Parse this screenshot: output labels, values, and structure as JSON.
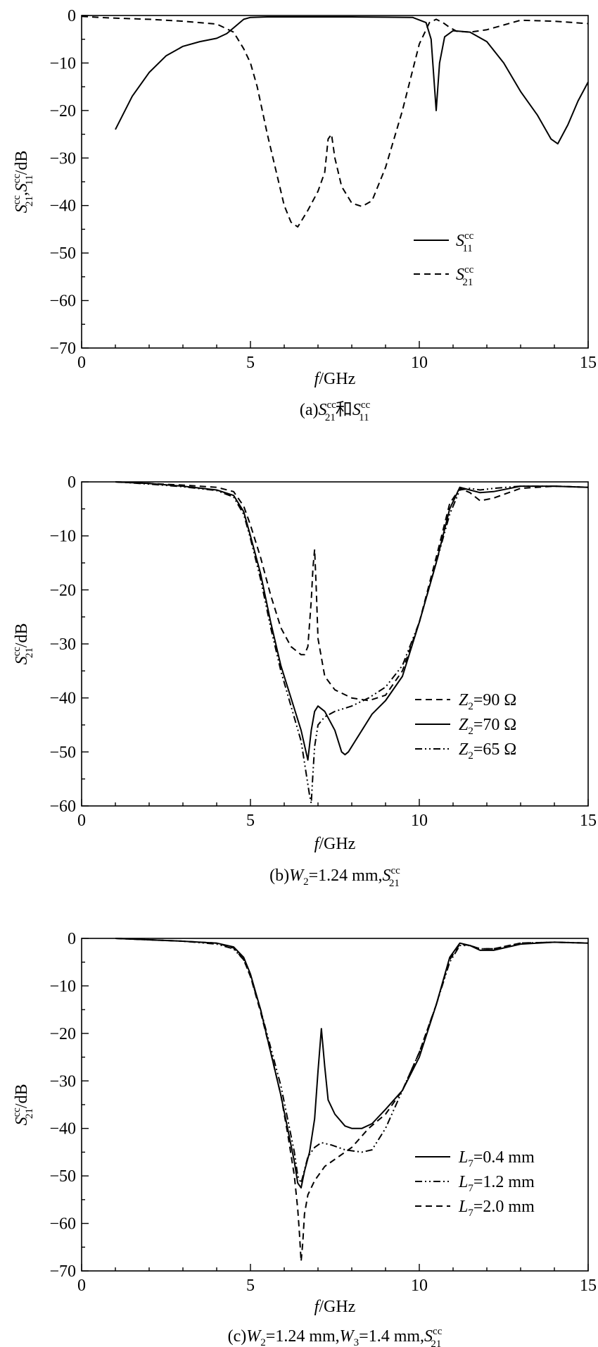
{
  "chart_data": [
    {
      "type": "line",
      "panel": "a",
      "caption": "(a)S21cc和S11cc",
      "xlabel": "f/GHz",
      "ylabel": "S21cc,S11cc/dB",
      "xlim": [
        0,
        15
      ],
      "ylim": [
        -70,
        0
      ],
      "xticks": [
        0,
        5,
        10,
        15
      ],
      "yticks": [
        0,
        -10,
        -20,
        -30,
        -40,
        -50,
        -60,
        -70
      ],
      "grid": false,
      "legend_position": "lower-right",
      "series": [
        {
          "name": "S11cc",
          "style": "solid",
          "x": [
            1.0,
            1.5,
            2.0,
            2.5,
            3.0,
            3.5,
            4.0,
            4.3,
            4.6,
            4.8,
            5.0,
            5.5,
            6.0,
            7.0,
            8.0,
            9.0,
            9.8,
            10.2,
            10.35,
            10.5,
            10.6,
            10.75,
            11.0,
            11.5,
            12.0,
            12.5,
            13.0,
            13.5,
            13.9,
            14.1,
            14.4,
            14.7,
            15.0
          ],
          "y": [
            -24,
            -17,
            -12,
            -8.5,
            -6.5,
            -5.5,
            -4.8,
            -3.8,
            -2.0,
            -0.8,
            -0.4,
            -0.3,
            -0.3,
            -0.3,
            -0.3,
            -0.35,
            -0.4,
            -1.5,
            -5,
            -20,
            -10,
            -4.5,
            -3.2,
            -3.5,
            -5.5,
            -10,
            -16,
            -21,
            -26,
            -27,
            -23,
            -18,
            -14
          ]
        },
        {
          "name": "S21cc",
          "style": "dashed",
          "x": [
            0.0,
            0.8,
            2.0,
            2.5,
            3.0,
            3.5,
            4.0,
            4.5,
            4.8,
            5.0,
            5.2,
            5.5,
            6.0,
            6.2,
            6.4,
            6.7,
            7.0,
            7.2,
            7.3,
            7.4,
            7.5,
            7.7,
            8.0,
            8.3,
            8.6,
            9.0,
            9.5,
            10.0,
            10.3,
            10.5,
            10.7,
            10.9,
            11.1,
            11.5,
            12.0,
            12.5,
            13.0,
            14.0,
            15.0
          ],
          "y": [
            -0.2,
            -0.5,
            -0.8,
            -1.0,
            -1.2,
            -1.5,
            -1.8,
            -3.5,
            -7,
            -10,
            -15,
            -25,
            -40,
            -43.5,
            -44.5,
            -41,
            -37,
            -33,
            -26,
            -25,
            -30,
            -36,
            -39.5,
            -40.2,
            -39,
            -32,
            -20,
            -6,
            -1.5,
            -0.8,
            -1.5,
            -2.5,
            -3.3,
            -3.5,
            -3.0,
            -2.0,
            -1.0,
            -1.2,
            -1.7
          ]
        }
      ]
    },
    {
      "type": "line",
      "panel": "b",
      "caption": "(b)W2=1.24 mm,S21cc",
      "xlabel": "f/GHz",
      "ylabel": "S21cc/dB",
      "xlim": [
        0,
        15
      ],
      "ylim": [
        -60,
        0
      ],
      "xticks": [
        0,
        5,
        10,
        15
      ],
      "yticks": [
        0,
        -10,
        -20,
        -30,
        -40,
        -50,
        -60
      ],
      "grid": false,
      "legend_position": "lower-right",
      "series": [
        {
          "name": "Z2=90 Ω",
          "style": "dashed",
          "x": [
            1.0,
            2.0,
            3.0,
            4.0,
            4.5,
            4.8,
            5.0,
            5.3,
            5.6,
            5.9,
            6.2,
            6.5,
            6.6,
            6.7,
            6.8,
            6.85,
            6.9,
            6.95,
            7.0,
            7.2,
            7.5,
            8.0,
            8.5,
            9.0,
            9.5,
            10.0,
            10.5,
            10.9,
            11.2,
            11.5,
            11.8,
            12.2,
            13.0,
            14.0,
            15.0
          ],
          "y": [
            0,
            -0.3,
            -0.6,
            -1.0,
            -1.8,
            -4.5,
            -8,
            -14,
            -21,
            -27,
            -30.5,
            -32.0,
            -32.0,
            -30.5,
            -22,
            -16,
            -12.5,
            -20,
            -29,
            -36,
            -38.5,
            -40,
            -40.5,
            -39.5,
            -35,
            -26,
            -14,
            -4,
            -1.2,
            -2,
            -3.5,
            -3.0,
            -1.2,
            -0.8,
            -1.0
          ]
        },
        {
          "name": "Z2=70 Ω",
          "style": "solid",
          "x": [
            1.0,
            2.0,
            3.0,
            4.0,
            4.5,
            4.8,
            5.0,
            5.3,
            5.6,
            5.9,
            6.2,
            6.5,
            6.7,
            6.8,
            6.9,
            7.0,
            7.2,
            7.5,
            7.7,
            7.8,
            7.9,
            8.2,
            8.6,
            9.0,
            9.5,
            10.0,
            10.5,
            10.9,
            11.2,
            11.5,
            11.8,
            12.2,
            13.0,
            14.0,
            15.0
          ],
          "y": [
            0,
            -0.3,
            -0.8,
            -1.5,
            -2.5,
            -5.5,
            -10,
            -17,
            -26,
            -34,
            -40,
            -46,
            -51.5,
            -46,
            -42.5,
            -41.5,
            -42.5,
            -46,
            -50,
            -50.5,
            -50,
            -47,
            -43,
            -40.5,
            -36,
            -26,
            -15,
            -5,
            -1.0,
            -1.5,
            -2.0,
            -1.8,
            -0.8,
            -0.8,
            -1.0
          ]
        },
        {
          "name": "Z2=65 Ω",
          "style": "dashdotdot",
          "x": [
            1.0,
            2.0,
            3.0,
            4.0,
            4.5,
            4.8,
            5.0,
            5.3,
            5.6,
            5.9,
            6.2,
            6.5,
            6.65,
            6.75,
            6.8,
            6.85,
            6.9,
            7.0,
            7.2,
            7.5,
            8.0,
            8.5,
            9.0,
            9.5,
            10.0,
            10.5,
            10.9,
            11.2,
            11.5,
            11.8,
            12.2,
            13.0,
            14.0,
            15.0
          ],
          "y": [
            0,
            -0.4,
            -0.9,
            -1.6,
            -2.8,
            -6,
            -10.5,
            -18,
            -27,
            -35,
            -41.5,
            -48,
            -54,
            -58,
            -59.5,
            -54,
            -49,
            -45,
            -43.5,
            -42.5,
            -41.5,
            -40,
            -38,
            -34,
            -26,
            -15,
            -6,
            -1.5,
            -1.2,
            -1.5,
            -1.2,
            -0.8,
            -0.8,
            -1.0
          ]
        }
      ]
    },
    {
      "type": "line",
      "panel": "c",
      "caption": "(c)W2=1.24 mm,W3=1.4 mm,S21cc",
      "xlabel": "f/GHz",
      "ylabel": "S21cc/dB",
      "xlim": [
        0,
        15
      ],
      "ylim": [
        -70,
        0
      ],
      "xticks": [
        0,
        5,
        10,
        15
      ],
      "yticks": [
        0,
        -10,
        -20,
        -30,
        -40,
        -50,
        -60,
        -70
      ],
      "grid": false,
      "legend_position": "lower-right",
      "series": [
        {
          "name": "L7=0.4 mm",
          "style": "solid",
          "x": [
            1.0,
            2.0,
            3.0,
            4.0,
            4.5,
            4.8,
            5.0,
            5.3,
            5.6,
            5.9,
            6.1,
            6.3,
            6.4,
            6.5,
            6.6,
            6.75,
            6.9,
            7.0,
            7.1,
            7.2,
            7.3,
            7.5,
            7.8,
            8.0,
            8.3,
            8.6,
            9.0,
            9.5,
            10.0,
            10.5,
            10.9,
            11.2,
            11.5,
            11.8,
            12.2,
            13.0,
            14.0,
            15.0
          ],
          "y": [
            0,
            -0.3,
            -0.6,
            -1.0,
            -1.8,
            -4.0,
            -7.5,
            -15,
            -24,
            -33,
            -40,
            -47,
            -51.5,
            -52.5,
            -49,
            -45,
            -38,
            -28,
            -19,
            -27,
            -34,
            -37,
            -39.5,
            -40,
            -40,
            -39,
            -36,
            -32,
            -25,
            -14,
            -4,
            -1.0,
            -1.5,
            -2.5,
            -2.5,
            -1.2,
            -0.8,
            -1.0
          ]
        },
        {
          "name": "L7=1.2 mm",
          "style": "dashdotdot",
          "x": [
            1.0,
            2.0,
            3.0,
            4.0,
            4.5,
            4.8,
            5.0,
            5.3,
            5.6,
            5.9,
            6.1,
            6.3,
            6.4,
            6.5,
            6.7,
            6.9,
            7.1,
            7.4,
            7.8,
            8.3,
            8.6,
            9.0,
            9.5,
            10.0,
            10.5,
            10.9,
            11.2,
            11.5,
            11.8,
            12.2,
            13.0,
            14.0,
            15.0
          ],
          "y": [
            0,
            -0.3,
            -0.6,
            -1.2,
            -2.2,
            -4.5,
            -8,
            -15,
            -23,
            -31,
            -38,
            -45,
            -50,
            -51.5,
            -46,
            -44,
            -43,
            -43.5,
            -44.5,
            -45,
            -44.5,
            -40,
            -32,
            -24,
            -14,
            -5,
            -1.5,
            -1.5,
            -2.2,
            -2.2,
            -1.0,
            -0.8,
            -1.0
          ]
        },
        {
          "name": "L7=2.0 mm",
          "style": "dashed",
          "x": [
            1.0,
            2.0,
            3.0,
            4.0,
            4.5,
            4.8,
            5.0,
            5.3,
            5.6,
            5.9,
            6.1,
            6.3,
            6.4,
            6.45,
            6.5,
            6.55,
            6.6,
            6.7,
            6.9,
            7.2,
            7.6,
            8.0,
            8.5,
            9.0,
            9.5,
            10.0,
            10.5,
            10.9,
            11.2,
            11.5,
            11.8,
            12.2,
            13.0,
            14.0,
            15.0
          ],
          "y": [
            0,
            -0.3,
            -0.6,
            -1.0,
            -2.0,
            -4.5,
            -8,
            -15.5,
            -24,
            -33,
            -41,
            -50,
            -57,
            -62,
            -68,
            -64,
            -58,
            -54,
            -51,
            -48,
            -46,
            -44,
            -40,
            -37,
            -32,
            -24,
            -14,
            -4.5,
            -1.2,
            -1.5,
            -2.2,
            -2.2,
            -1.0,
            -0.8,
            -1.0
          ]
        }
      ]
    }
  ]
}
